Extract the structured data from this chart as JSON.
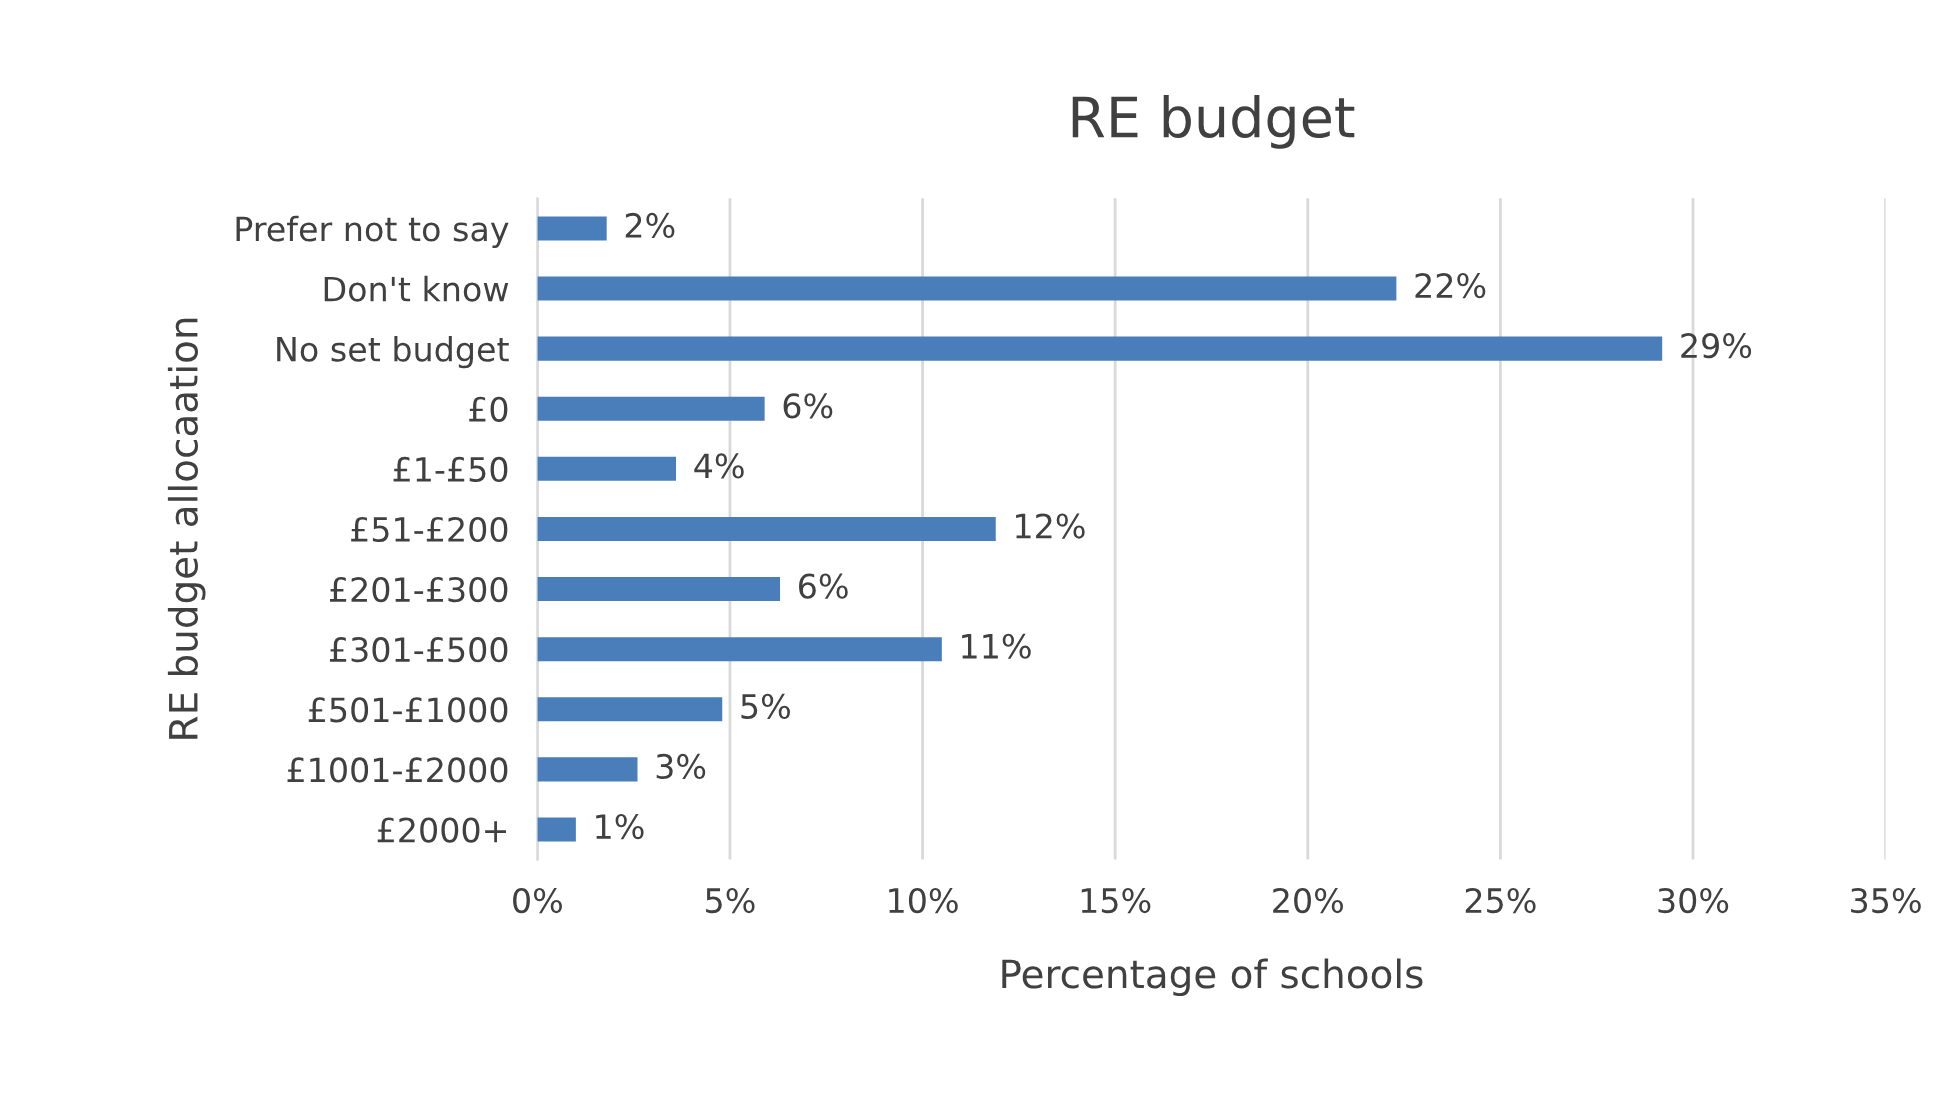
{
  "chart_data": {
    "type": "bar",
    "orientation": "horizontal",
    "title": "RE budget",
    "xlabel": "Percentage of schools",
    "ylabel": "RE budget allocaation",
    "categories": [
      "Prefer not to say",
      "Don't know",
      "No set budget",
      "£0",
      "£1-£50",
      "£51-£200",
      "£201-£300",
      "£301-£500",
      "£501-£1000",
      "£1001-£2000",
      "£2000+"
    ],
    "values": [
      1.8,
      22.3,
      29.2,
      5.9,
      3.6,
      11.9,
      6.3,
      10.5,
      4.8,
      2.6,
      1.0
    ],
    "value_labels": [
      "2%",
      "22%",
      "29%",
      "6%",
      "4%",
      "12%",
      "6%",
      "11%",
      "5%",
      "3%",
      "1%"
    ],
    "color": "#4a7ebb",
    "xlim": [
      0,
      35
    ],
    "xticks": [
      {
        "value": 0,
        "label": "0%"
      },
      {
        "value": 5,
        "label": "5%"
      },
      {
        "value": 10,
        "label": "10%"
      },
      {
        "value": 15,
        "label": "15%"
      },
      {
        "value": 20,
        "label": "20%"
      },
      {
        "value": 25,
        "label": "25%"
      },
      {
        "value": 30,
        "label": "30%"
      },
      {
        "value": 35,
        "label": "35%"
      }
    ],
    "grid": "x",
    "legend": false
  }
}
